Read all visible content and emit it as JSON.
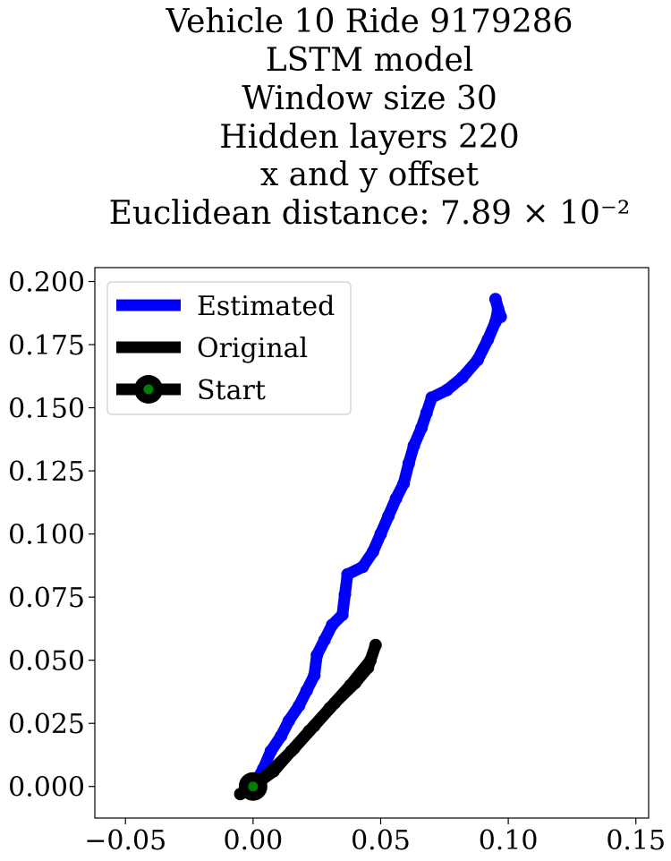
{
  "chart_data": {
    "type": "line",
    "title_lines": [
      "Vehicle 10 Ride 9179286",
      "LSTM model",
      "Window size 30",
      "Hidden layers 220",
      "x and y offset",
      "Euclidean distance: 7.89 × 10⁻²"
    ],
    "xlabel": "",
    "ylabel": "",
    "xlim": [
      -0.062,
      0.155
    ],
    "ylim": [
      -0.0125,
      0.2055
    ],
    "xticks": [
      -0.05,
      0.0,
      0.05,
      0.1,
      0.15
    ],
    "xtick_labels": [
      "−0.05",
      "0.00",
      "0.05",
      "0.10",
      "0.15"
    ],
    "yticks": [
      0.0,
      0.025,
      0.05,
      0.075,
      0.1,
      0.125,
      0.15,
      0.175,
      0.2
    ],
    "ytick_labels": [
      "0.000",
      "0.025",
      "0.050",
      "0.075",
      "0.100",
      "0.125",
      "0.150",
      "0.175",
      "0.200"
    ],
    "grid": false,
    "legend_position": "upper-left",
    "legend": [
      {
        "label": "Estimated",
        "color": "#0000ff",
        "marker": "none"
      },
      {
        "label": "Original",
        "color": "#000000",
        "marker": "none"
      },
      {
        "label": "Start",
        "color": "#000000",
        "marker": "circle",
        "marker_face": "#008000"
      }
    ],
    "series": [
      {
        "name": "Estimated",
        "color": "#0000ff",
        "points": [
          [
            0.0,
            0.0
          ],
          [
            0.004,
            0.007
          ],
          [
            0.007,
            0.014
          ],
          [
            0.011,
            0.02
          ],
          [
            0.014,
            0.026
          ],
          [
            0.018,
            0.032
          ],
          [
            0.021,
            0.038
          ],
          [
            0.024,
            0.044
          ],
          [
            0.025,
            0.052
          ],
          [
            0.028,
            0.058
          ],
          [
            0.031,
            0.064
          ],
          [
            0.035,
            0.068
          ],
          [
            0.036,
            0.076
          ],
          [
            0.037,
            0.084
          ],
          [
            0.043,
            0.087
          ],
          [
            0.047,
            0.093
          ],
          [
            0.05,
            0.1
          ],
          [
            0.053,
            0.107
          ],
          [
            0.056,
            0.114
          ],
          [
            0.059,
            0.12
          ],
          [
            0.061,
            0.128
          ],
          [
            0.063,
            0.135
          ],
          [
            0.066,
            0.142
          ],
          [
            0.068,
            0.148
          ],
          [
            0.07,
            0.154
          ],
          [
            0.076,
            0.157
          ],
          [
            0.082,
            0.162
          ],
          [
            0.088,
            0.169
          ],
          [
            0.092,
            0.177
          ],
          [
            0.095,
            0.184
          ],
          [
            0.096,
            0.189
          ],
          [
            0.095,
            0.193
          ],
          [
            0.097,
            0.186
          ]
        ]
      },
      {
        "name": "Original",
        "color": "#000000",
        "points": [
          [
            0.0,
            0.0
          ],
          [
            0.008,
            0.007
          ],
          [
            0.016,
            0.015
          ],
          [
            0.024,
            0.024
          ],
          [
            0.032,
            0.033
          ],
          [
            0.04,
            0.041
          ],
          [
            0.045,
            0.047
          ],
          [
            0.048,
            0.056
          ],
          [
            0.046,
            0.05
          ],
          [
            0.038,
            0.04
          ],
          [
            0.03,
            0.031
          ],
          [
            0.022,
            0.022
          ],
          [
            0.015,
            0.014
          ],
          [
            0.008,
            0.006
          ],
          [
            0.0,
            0.0
          ],
          [
            -0.005,
            -0.003
          ]
        ]
      }
    ],
    "start_point": {
      "name": "Start",
      "x": 0.0,
      "y": 0.0
    }
  }
}
